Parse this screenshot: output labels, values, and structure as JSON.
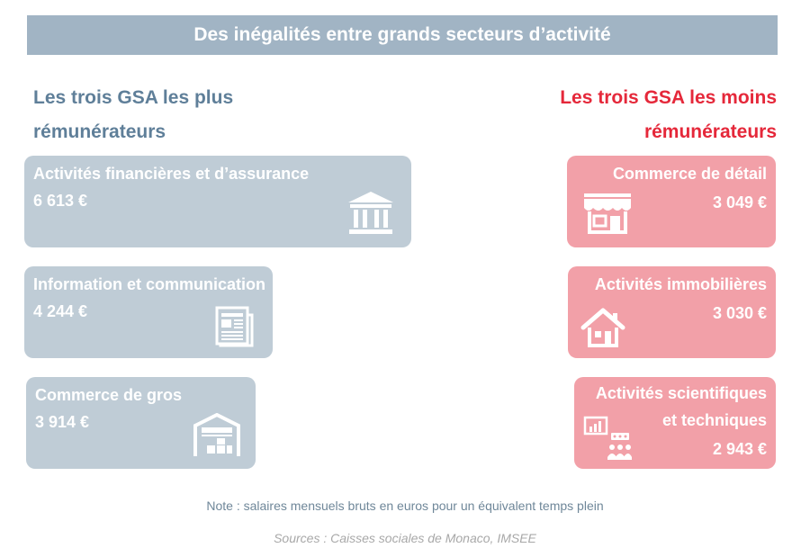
{
  "title": "Des inégalités entre grands secteurs d’activité",
  "left_heading": [
    "Les trois GSA les plus",
    "rémunérateurs"
  ],
  "right_heading": [
    "Les trois GSA les moins",
    "rémunérateurs"
  ],
  "note": "Note : salaires mensuels bruts en euros pour un équivalent temps plein",
  "sources": "Sources : Caisses sociales de Monaco, IMSEE",
  "chart_data": {
    "type": "bar",
    "unit": "€",
    "groups": [
      {
        "name": "Les trois GSA les plus rémunérateurs",
        "color": "#bfccd6",
        "items": [
          {
            "label": "Activités financières et d’assurance",
            "value": 6613,
            "value_label": "6 613 €",
            "icon": "bank-icon"
          },
          {
            "label": "Information et communication",
            "value": 4244,
            "value_label": "4 244 €",
            "icon": "newspaper-icon"
          },
          {
            "label": "Commerce de gros",
            "value": 3914,
            "value_label": "3 914 €",
            "icon": "warehouse-icon"
          }
        ]
      },
      {
        "name": "Les trois GSA les moins rémunérateurs",
        "color": "#f2a0a8",
        "items": [
          {
            "label": "Commerce de détail",
            "value": 3049,
            "value_label": "3 049 €",
            "icon": "shop-icon"
          },
          {
            "label": "Activités immobilières",
            "value": 3030,
            "value_label": "3 030 €",
            "icon": "house-icon"
          },
          {
            "label_lines": [
              "Activités scientifiques",
              "et techniques"
            ],
            "label": "Activités scientifiques et techniques",
            "value": 2943,
            "value_label": "2 943 €",
            "icon": "presentation-icon"
          }
        ]
      }
    ]
  }
}
